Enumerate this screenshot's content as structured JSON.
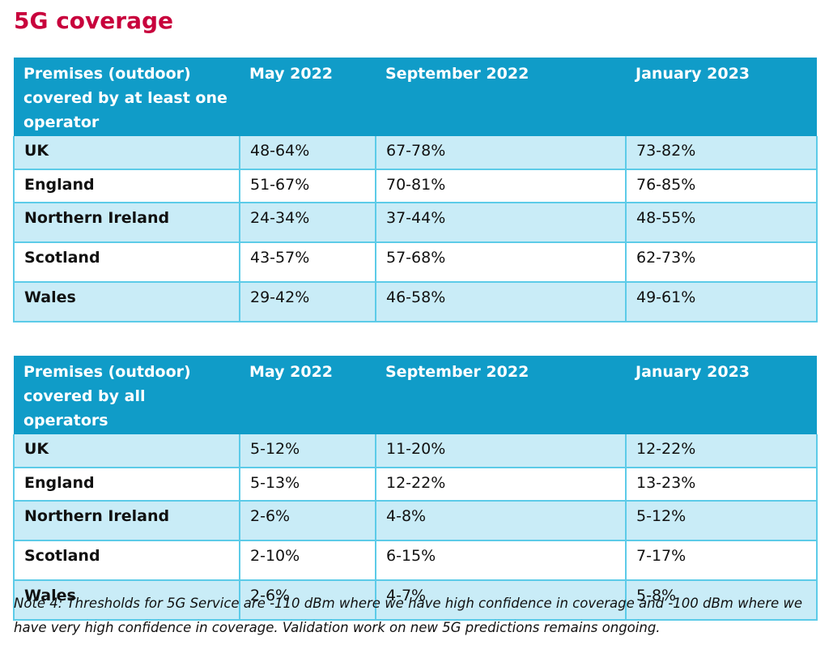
{
  "title": "5G coverage",
  "tables": [
    {
      "headers": [
        "Premises (outdoor) covered by at least one operator",
        "May 2022",
        "September 2022",
        "January 2023"
      ],
      "rows": [
        [
          "UK",
          "48-64%",
          "67-78%",
          "73-82%"
        ],
        [
          "England",
          "51-67%",
          "70-81%",
          "76-85%"
        ],
        [
          "Northern Ireland",
          "24-34%",
          "37-44%",
          "48-55%"
        ],
        [
          "Scotland",
          "43-57%",
          "57-68%",
          "62-73%"
        ],
        [
          "Wales",
          "29-42%",
          "46-58%",
          "49-61%"
        ]
      ]
    },
    {
      "headers": [
        "Premises (outdoor) covered by all operators",
        "May 2022",
        "September 2022",
        "January 2023"
      ],
      "rows": [
        [
          "UK",
          "5-12%",
          "11-20%",
          "12-22%"
        ],
        [
          "England",
          "5-13%",
          "12-22%",
          "13-23%"
        ],
        [
          "Northern Ireland",
          "2-6%",
          "4-8%",
          "5-12%"
        ],
        [
          "Scotland",
          "2-10%",
          "6-15%",
          "7-17%"
        ],
        [
          "Wales",
          "2-6%",
          "4-7%",
          "5-8%"
        ]
      ]
    }
  ],
  "note": "Note 4: Thresholds for 5G Service are -110 dBm where we have high confidence in coverage and -100 dBm where we have very high confidence in coverage. Validation work on new 5G predictions remains ongoing.",
  "colors": {
    "title": "#c8003c",
    "header_bg": "#109cc8",
    "row_shaded": "#c9ecf7",
    "border": "#5ccbe8"
  }
}
